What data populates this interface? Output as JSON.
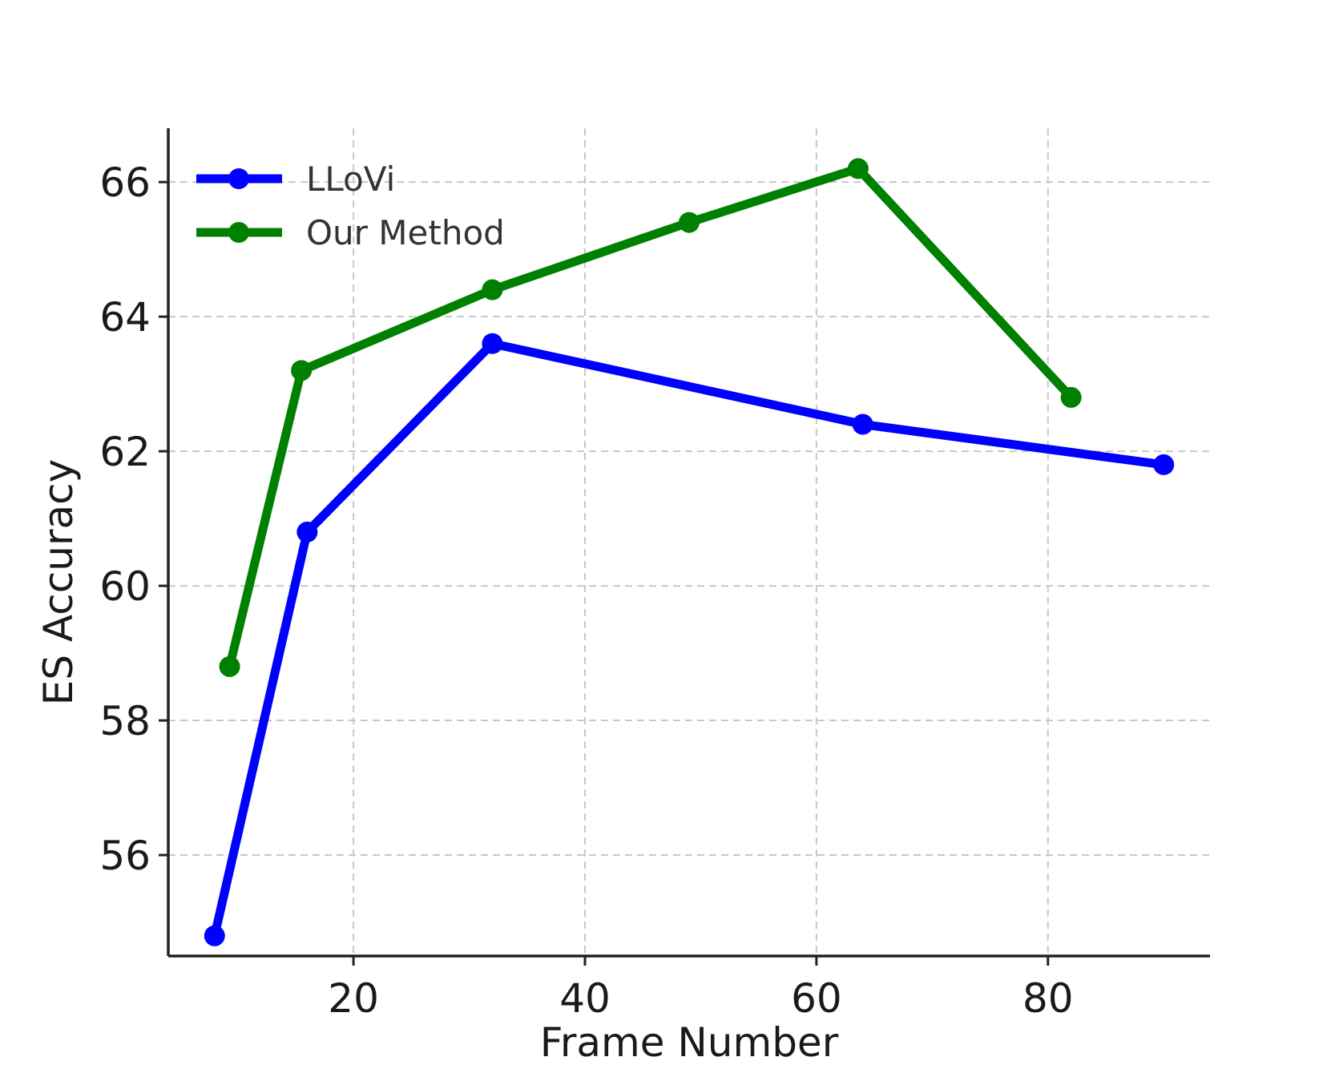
{
  "chart_data": {
    "type": "line",
    "title": "",
    "xlabel": "Frame Number",
    "ylabel": "ES Accuracy",
    "xlim": [
      4,
      94
    ],
    "ylim": [
      54.5,
      66.8
    ],
    "xticks": [
      20,
      40,
      60,
      80
    ],
    "yticks": [
      56,
      58,
      60,
      62,
      64,
      66
    ],
    "xtick_labels": [
      "20",
      "40",
      "60",
      "80"
    ],
    "ytick_labels": [
      "56",
      "58",
      "60",
      "62",
      "64",
      "66"
    ],
    "grid": true,
    "legend_position": "top-left",
    "series": [
      {
        "name": "LLoVi",
        "color": "#0000ff",
        "points": [
          {
            "x": 8,
            "y": 54.8
          },
          {
            "x": 16,
            "y": 60.8
          },
          {
            "x": 32,
            "y": 63.6
          },
          {
            "x": 64,
            "y": 62.4
          },
          {
            "x": 90,
            "y": 61.8
          }
        ]
      },
      {
        "name": "Our Method",
        "color": "#008000",
        "points": [
          {
            "x": 9.3,
            "y": 58.8
          },
          {
            "x": 15.5,
            "y": 63.2
          },
          {
            "x": 32,
            "y": 64.4
          },
          {
            "x": 49,
            "y": 65.4
          },
          {
            "x": 63.6,
            "y": 66.2
          },
          {
            "x": 82,
            "y": 62.8
          }
        ]
      }
    ]
  }
}
